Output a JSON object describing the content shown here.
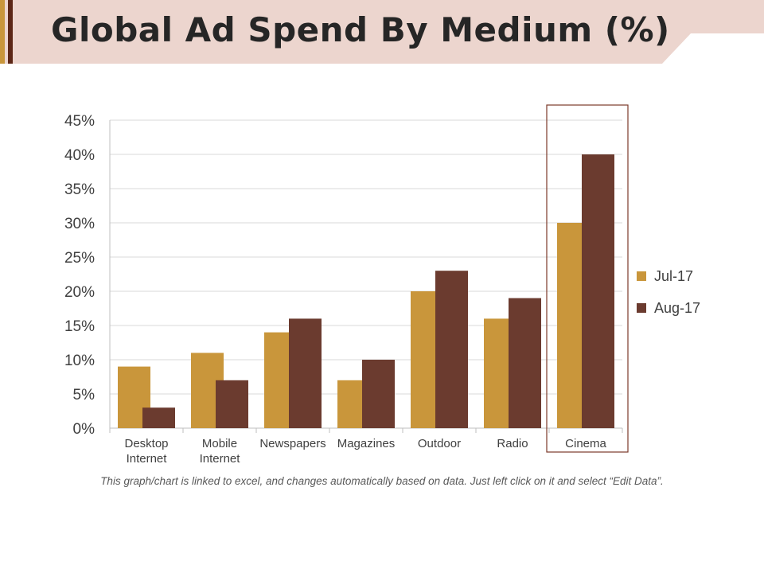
{
  "slide": {
    "title": "Global Ad Spend By Medium (%)",
    "footnote": "This graph/chart is linked to excel, and changes automatically based on data. Just left click on it and select “Edit Data”."
  },
  "colors": {
    "banner": "#ecd5ce",
    "accent_gold": "#c9963b",
    "accent_brown": "#5c2616",
    "highlight_box": "#7b3a2a"
  },
  "chart_data": {
    "type": "bar",
    "categories": [
      [
        "Desktop",
        "Internet"
      ],
      [
        "Mobile",
        "Internet"
      ],
      [
        "Newspapers"
      ],
      [
        "Magazines"
      ],
      [
        "Outdoor"
      ],
      [
        "Radio"
      ],
      [
        "Cinema"
      ]
    ],
    "series": [
      {
        "name": "Jul-17",
        "values": [
          9,
          11,
          14,
          7,
          20,
          16,
          30
        ],
        "color": "#c9963b"
      },
      {
        "name": "Aug-17",
        "values": [
          3,
          7,
          16,
          10,
          23,
          19,
          40
        ],
        "color": "#6b3b2f"
      }
    ],
    "ylim": [
      0,
      45
    ],
    "ytick_labels": [
      "0%",
      "5%",
      "10%",
      "15%",
      "20%",
      "25%",
      "30%",
      "35%",
      "40%",
      "45%"
    ],
    "grid": true,
    "legend_position": "right",
    "highlighted_category": "Cinema"
  }
}
